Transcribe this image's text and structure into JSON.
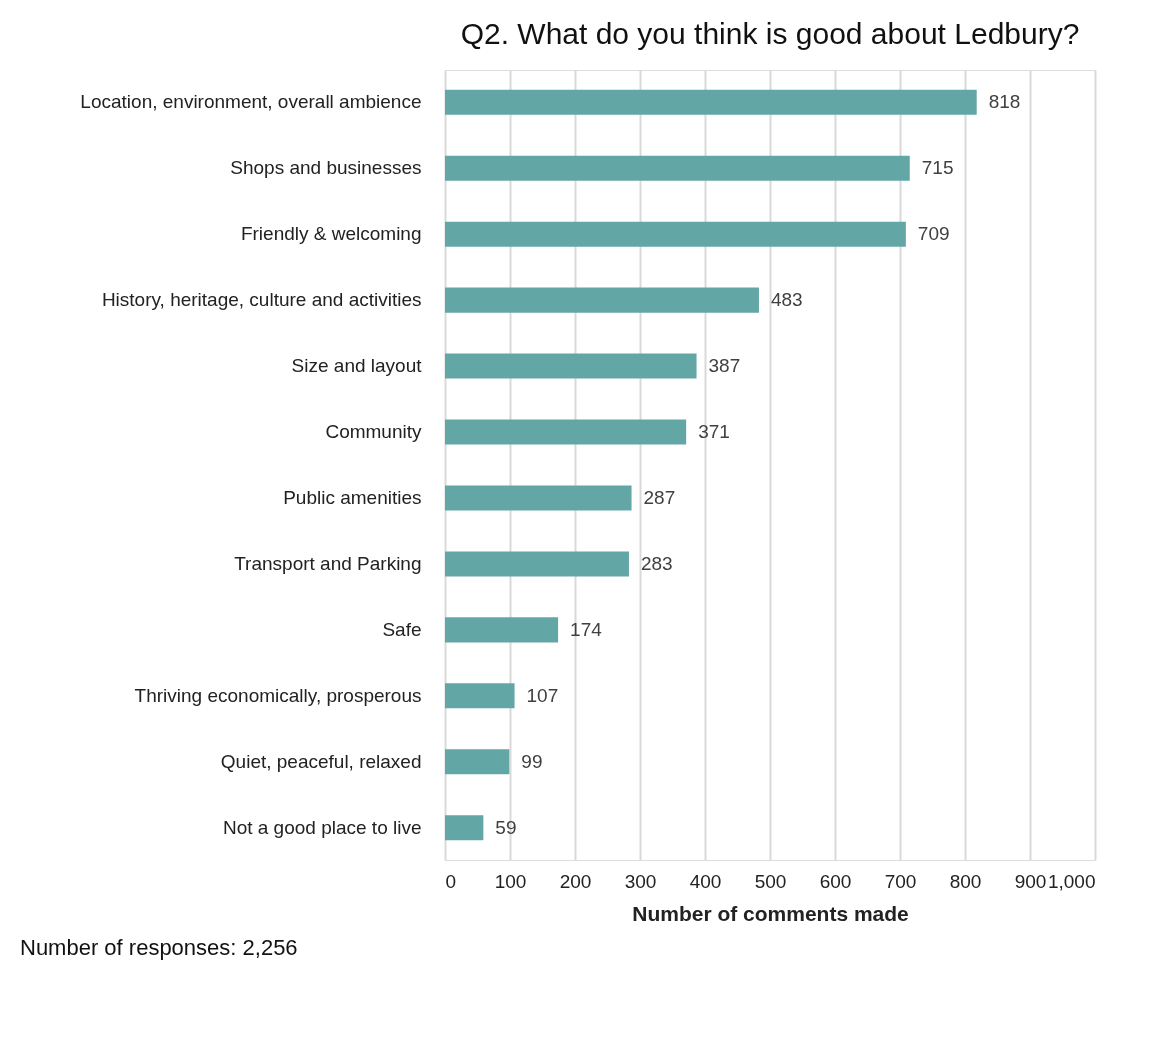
{
  "chart_data": {
    "type": "bar",
    "orientation": "horizontal",
    "title": "Q2. What do you think is good about Ledbury?",
    "categories": [
      "Location, environment,  overall ambience",
      "Shops and businesses",
      "Friendly & welcoming",
      "History, heritage, culture and activities",
      "Size and layout",
      "Community",
      "Public amenities",
      "Transport and Parking",
      "Safe",
      "Thriving economically, prosperous",
      "Quiet, peaceful, relaxed",
      "Not a good place to live"
    ],
    "values": [
      818,
      715,
      709,
      483,
      387,
      371,
      287,
      283,
      174,
      107,
      99,
      59
    ],
    "color": "#62a6a6",
    "xlim": [
      0,
      1000
    ],
    "xticks": [
      0,
      100,
      200,
      300,
      400,
      500,
      600,
      700,
      800,
      900,
      {
        "value": 1000,
        "label": "1,000"
      }
    ],
    "xlabel": "Number of comments made",
    "grid": "x",
    "data_labels": true,
    "annotations": [
      "Number of responses: 2,256"
    ]
  }
}
